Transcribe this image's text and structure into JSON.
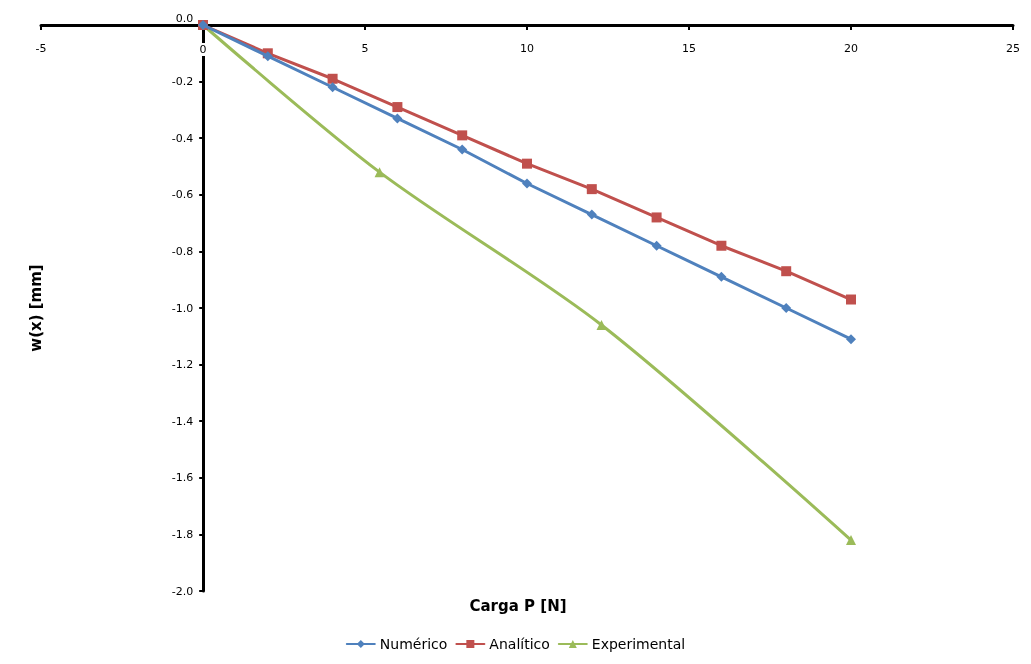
{
  "chart_data": {
    "type": "line",
    "xlabel": "Carga P [N]",
    "ylabel": "w(x) [mm]",
    "xlim": [
      -5,
      25
    ],
    "xticks": [
      -5,
      0,
      5,
      10,
      15,
      20,
      25
    ],
    "ylim": [
      -2.0,
      0.0
    ],
    "yticks": [
      {
        "value": 0,
        "label": "0.0"
      },
      -0.2,
      -0.4,
      -0.6,
      -0.8,
      {
        "value": -1,
        "label": "-1.0"
      },
      -1.2,
      -1.4,
      -1.6,
      -1.8,
      {
        "value": -2,
        "label": "-2.0"
      }
    ],
    "grid": false,
    "legend": "bottom",
    "line_style": "solid",
    "series": [
      {
        "name": "Numérico",
        "color": "#4f81bd",
        "marker": "diamond",
        "x": [
          0,
          2,
          4,
          6,
          8,
          10,
          12,
          14,
          16,
          18,
          20
        ],
        "values": [
          0,
          -0.11,
          -0.22,
          -0.33,
          -0.44,
          -0.56,
          -0.67,
          -0.78,
          -0.89,
          -1.0,
          -1.11
        ]
      },
      {
        "name": "Analítico",
        "color": "#c0504d",
        "marker": "square",
        "x": [
          0,
          2,
          4,
          6,
          8,
          10,
          12,
          14,
          16,
          18,
          20
        ],
        "values": [
          0,
          -0.1,
          -0.19,
          -0.29,
          -0.39,
          -0.49,
          -0.58,
          -0.68,
          -0.78,
          -0.87,
          -0.97
        ]
      },
      {
        "name": "Experimental",
        "color": "#9bbb59",
        "marker": "triangle",
        "x": [
          0,
          5.45,
          12.3,
          20
        ],
        "values": [
          0,
          -0.52,
          -1.06,
          -1.82
        ]
      }
    ]
  }
}
